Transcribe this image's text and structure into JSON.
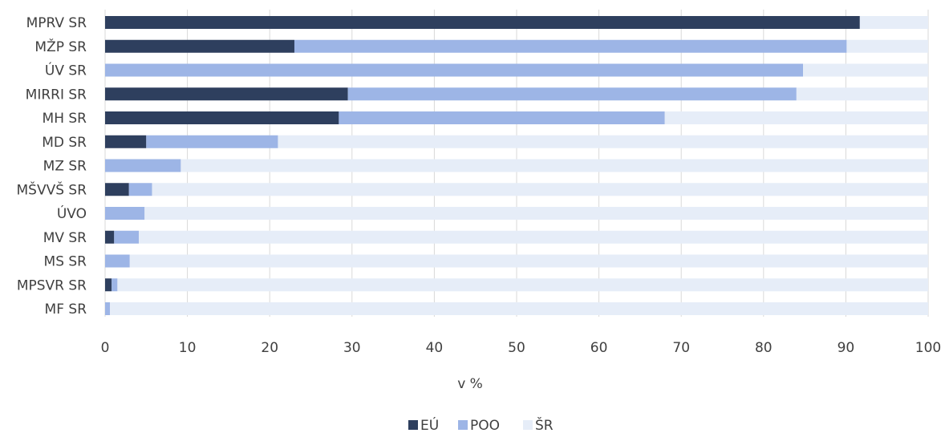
{
  "chart_data": {
    "type": "bar",
    "orientation": "horizontal",
    "stacked": true,
    "categories": [
      "MPRV SR",
      "MŽP SR",
      "ÚV SR",
      "MIRRI SR",
      "MH SR",
      "MD SR",
      "MZ SR",
      "MŠVVŠ SR",
      "ÚVO",
      "MV SR",
      "MS SR",
      "MPSVR SR",
      "MF SR"
    ],
    "series": [
      {
        "name": "EÚ",
        "color": "#2e3f5e",
        "values": [
          91.7,
          23.0,
          0,
          29.5,
          28.4,
          5.0,
          0,
          2.9,
          0,
          1.1,
          0,
          0.8,
          0
        ]
      },
      {
        "name": "POO",
        "color": "#9db5e6",
        "values": [
          0,
          67.1,
          84.8,
          54.5,
          39.6,
          16.0,
          9.2,
          2.8,
          4.8,
          3.0,
          3.0,
          0.7,
          0.6
        ]
      },
      {
        "name": "ŠR",
        "color": "#e6edf8",
        "values": [
          8.3,
          9.9,
          15.2,
          16.0,
          32.0,
          79.0,
          90.8,
          94.3,
          95.2,
          95.9,
          97.0,
          98.5,
          99.4
        ]
      }
    ],
    "xlim": [
      0,
      100
    ],
    "x_ticks": [
      "0",
      "10",
      "20",
      "30",
      "40",
      "50",
      "60",
      "70",
      "80",
      "90",
      "100"
    ],
    "xlabel": "v %",
    "grid": "vertical",
    "legend": "bottom-center"
  }
}
